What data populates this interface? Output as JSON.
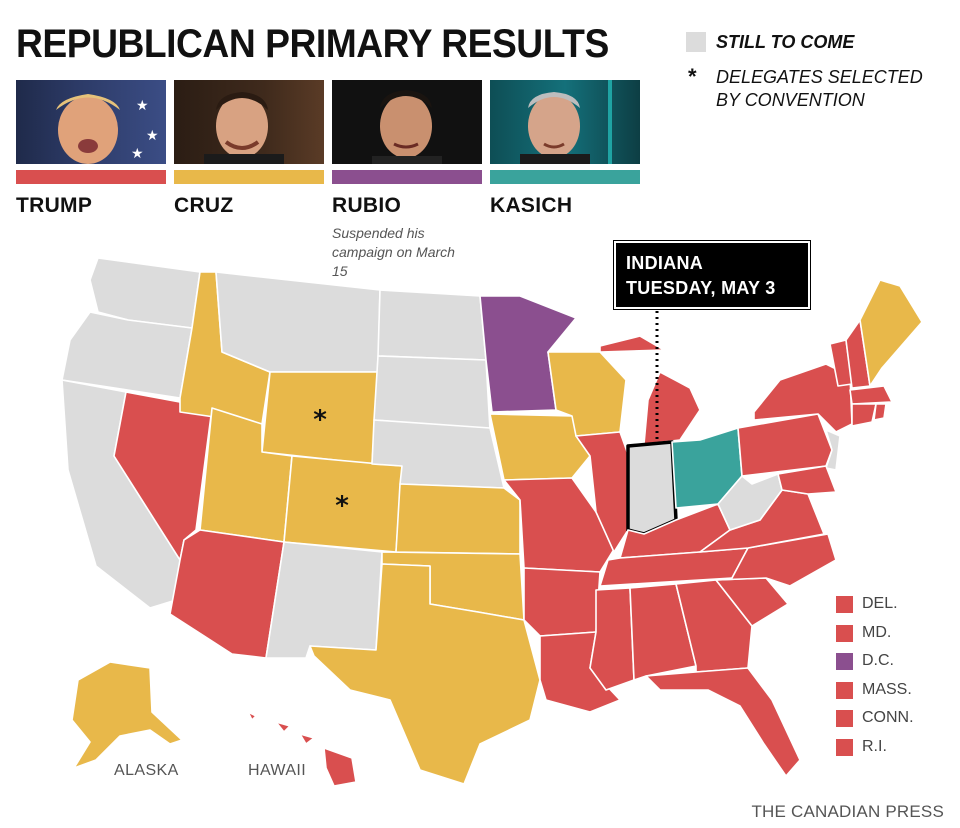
{
  "title": "REPUBLICAN PRIMARY RESULTS",
  "colors": {
    "trump": "#d94f4f",
    "cruz": "#e8b84a",
    "rubio": "#8b4f8f",
    "kasich": "#3aa39c",
    "still_to_come": "#dcdcdc"
  },
  "candidates": [
    {
      "name": "TRUMP",
      "color": "#d94f4f",
      "note": ""
    },
    {
      "name": "CRUZ",
      "color": "#e8b84a",
      "note": ""
    },
    {
      "name": "RUBIO",
      "color": "#8b4f8f",
      "note": "Suspended his campaign on March 15"
    },
    {
      "name": "KASICH",
      "color": "#3aa39c",
      "note": ""
    }
  ],
  "legend": {
    "still_to_come": "STILL TO COME",
    "convention_symbol": "*",
    "convention_line1": "DELEGATES SELECTED",
    "convention_line2": "BY CONVENTION"
  },
  "callout": {
    "state": "INDIANA",
    "date": "TUESDAY, MAY 3"
  },
  "small_states": [
    {
      "label": "DEL.",
      "winner": "trump"
    },
    {
      "label": "MD.",
      "winner": "trump"
    },
    {
      "label": "D.C.",
      "winner": "rubio"
    },
    {
      "label": "MASS.",
      "winner": "trump"
    },
    {
      "label": "CONN.",
      "winner": "trump"
    },
    {
      "label": "R.I.",
      "winner": "trump"
    }
  ],
  "map_labels": {
    "alaska": "ALASKA",
    "hawaii": "HAWAII"
  },
  "credit": "THE CANADIAN PRESS"
}
